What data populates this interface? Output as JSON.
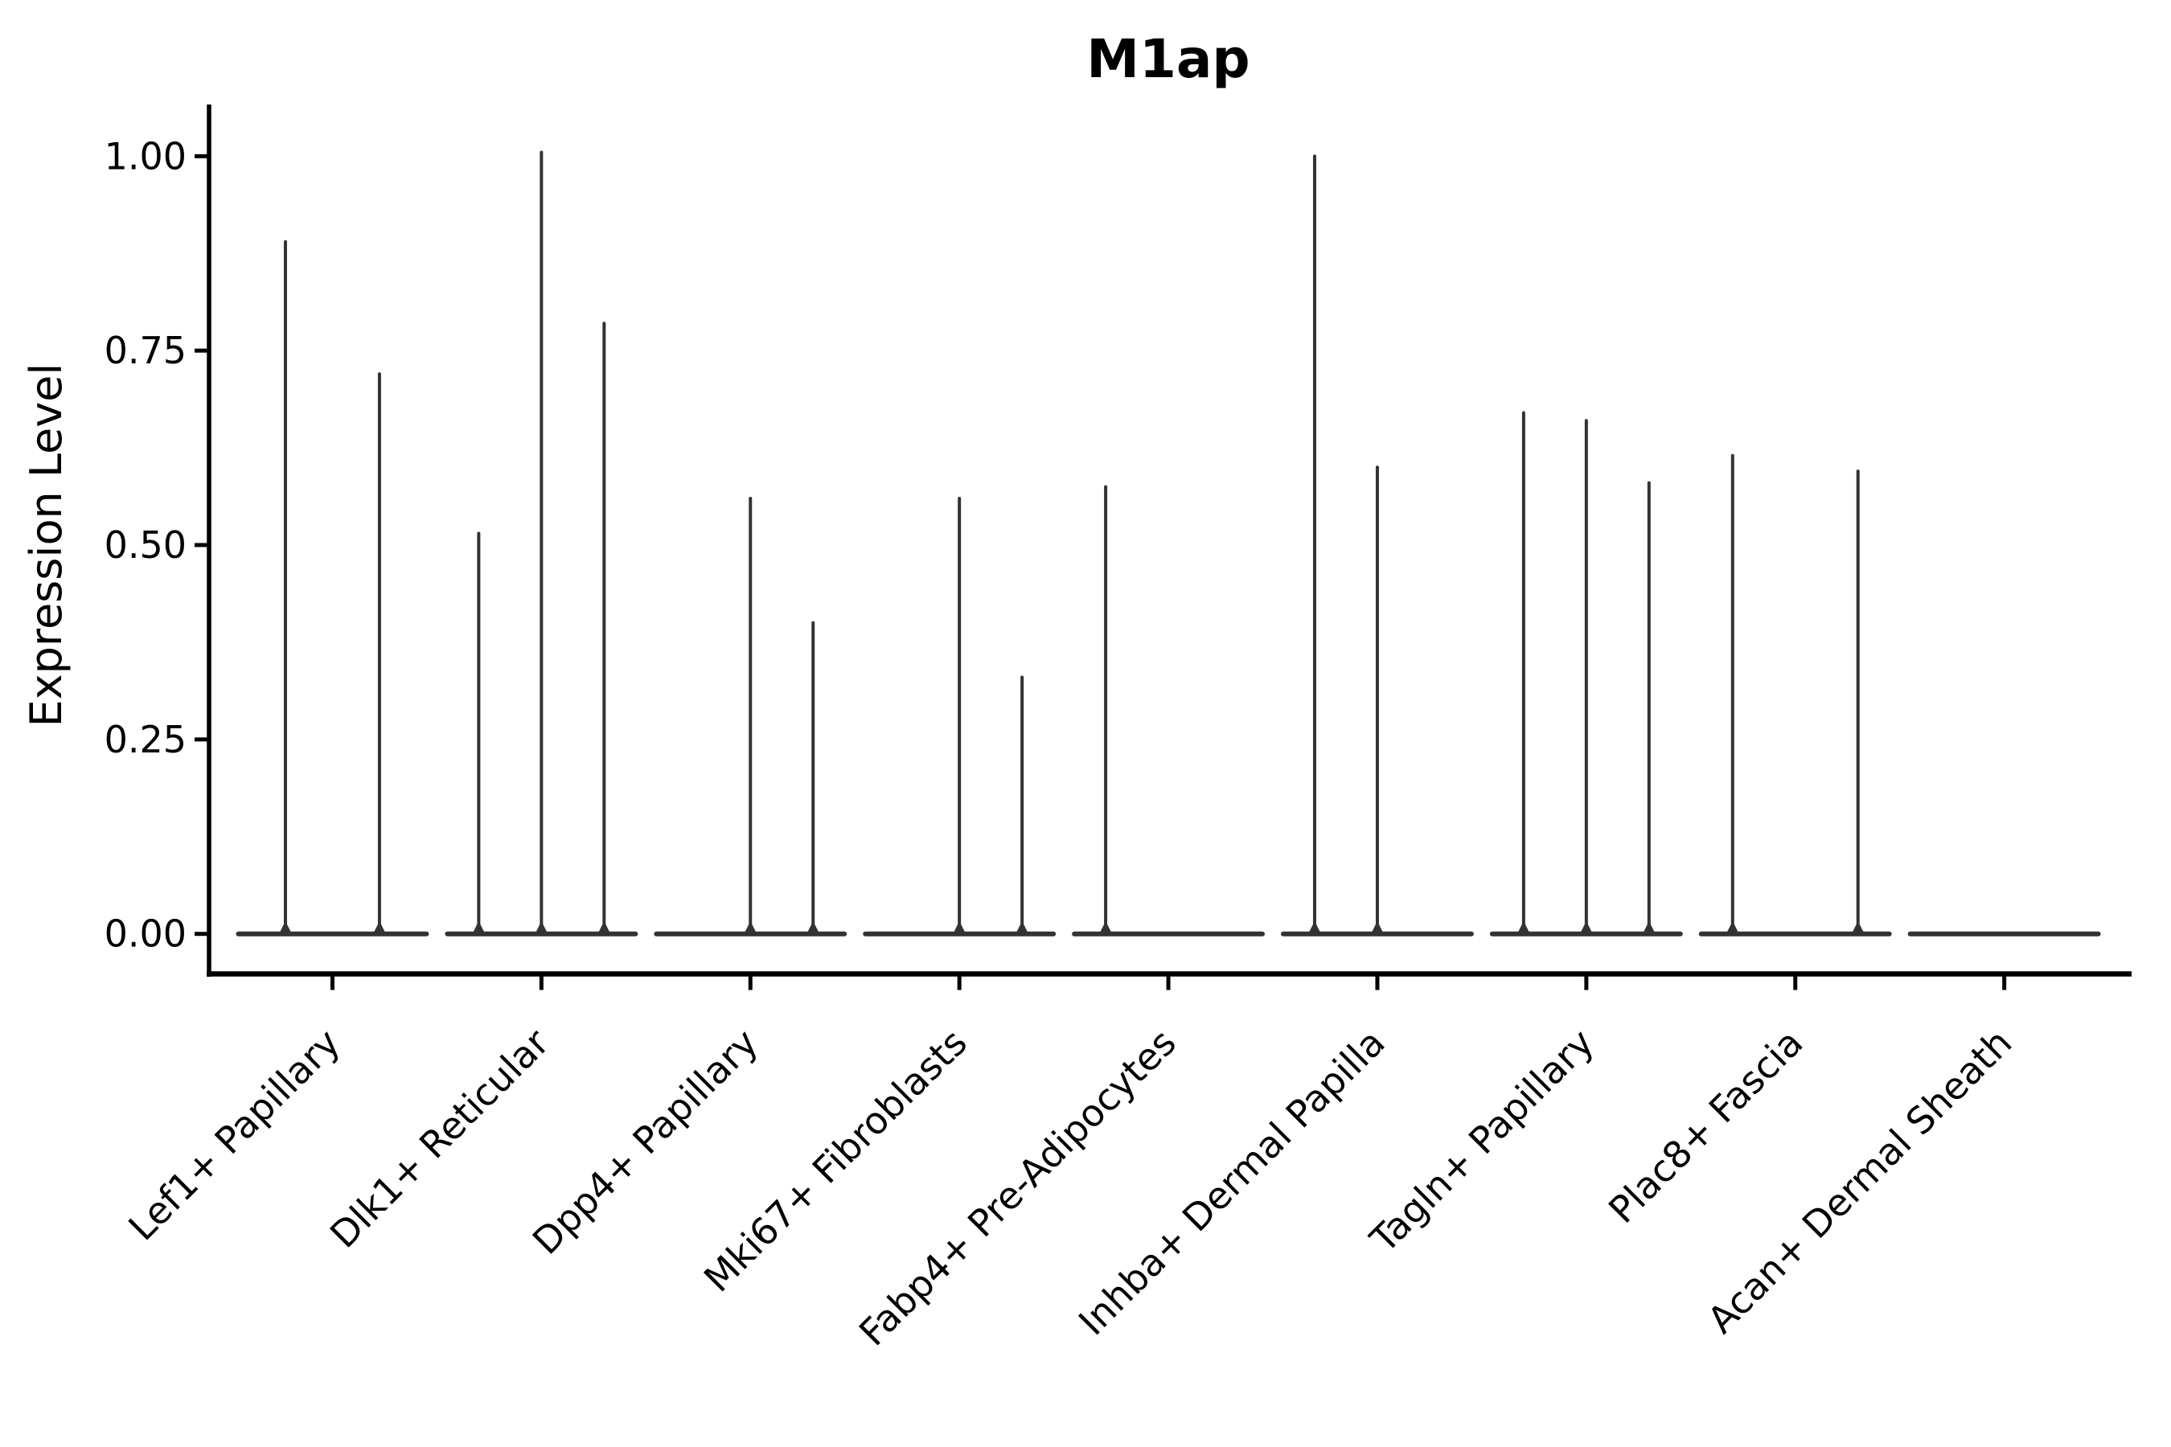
{
  "figure": {
    "title": "M1ap",
    "ylabel": "Expression Level"
  },
  "chart_data": {
    "type": "violin",
    "title": "M1ap",
    "xlabel": "",
    "ylabel": "Expression Level",
    "ylim": [
      -0.05,
      1.07
    ],
    "grid": false,
    "legend": "none",
    "yticks": [
      {
        "value": 0.0,
        "label": "0.00"
      },
      {
        "value": 0.25,
        "label": "0.25"
      },
      {
        "value": 0.5,
        "label": "0.50"
      },
      {
        "value": 0.75,
        "label": "0.75"
      },
      {
        "value": 1.0,
        "label": "1.00"
      }
    ],
    "categories": [
      "Lef1+ Papillary",
      "Dlk1+ Reticular",
      "Dpp4+ Papillary",
      "Mki67+ Fibroblasts",
      "Fabp4+ Pre-Adipocytes",
      "Inhba+ Dermal Papilla",
      "Tagln+ Papillary",
      "Plac8+ Fascia",
      "Acan+ Dermal Sheath"
    ],
    "groups": [
      {
        "category": "Lef1+ Papillary",
        "spikes": [
          {
            "offset": -0.225,
            "peak": 0.89
          },
          {
            "offset": 0.225,
            "peak": 0.72
          }
        ]
      },
      {
        "category": "Dlk1+ Reticular",
        "spikes": [
          {
            "offset": -0.3,
            "peak": 0.515
          },
          {
            "offset": 0.0,
            "peak": 1.005
          },
          {
            "offset": 0.3,
            "peak": 0.785
          }
        ]
      },
      {
        "category": "Dpp4+ Papillary",
        "spikes": [
          {
            "offset": 0.0,
            "peak": 0.56
          },
          {
            "offset": 0.3,
            "peak": 0.4
          }
        ]
      },
      {
        "category": "Mki67+ Fibroblasts",
        "spikes": [
          {
            "offset": 0.0,
            "peak": 0.56
          },
          {
            "offset": 0.3,
            "peak": 0.33
          }
        ]
      },
      {
        "category": "Fabp4+ Pre-Adipocytes",
        "spikes": [
          {
            "offset": -0.3,
            "peak": 0.575
          }
        ]
      },
      {
        "category": "Inhba+ Dermal Papilla",
        "spikes": [
          {
            "offset": -0.3,
            "peak": 1.0
          },
          {
            "offset": 0.0,
            "peak": 0.6
          }
        ]
      },
      {
        "category": "Tagln+ Papillary",
        "spikes": [
          {
            "offset": -0.3,
            "peak": 0.67
          },
          {
            "offset": 0.0,
            "peak": 0.66
          },
          {
            "offset": 0.3,
            "peak": 0.58
          }
        ]
      },
      {
        "category": "Plac8+ Fascia",
        "spikes": [
          {
            "offset": -0.3,
            "peak": 0.615
          },
          {
            "offset": 0.3,
            "peak": 0.595
          }
        ]
      },
      {
        "category": "Acan+ Dermal Sheath",
        "spikes": []
      }
    ],
    "style": {
      "violin_color": "#333333",
      "axis_color": "#000000",
      "text_color": "#000000",
      "background": "#ffffff",
      "group_halfwidth_frac": 0.45
    }
  }
}
